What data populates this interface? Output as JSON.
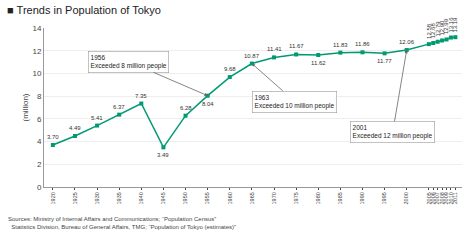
{
  "chart_data": {
    "type": "line",
    "title": "■ Trends in Population of Tokyo",
    "ylabel": "(million)",
    "x": [
      1920,
      1925,
      1930,
      1935,
      1940,
      1945,
      1950,
      1955,
      1960,
      1965,
      1970,
      1975,
      1980,
      1985,
      1990,
      1995,
      2000,
      2005,
      2006,
      2007,
      2008,
      2009,
      2010,
      2011
    ],
    "values": [
      3.7,
      4.49,
      5.41,
      6.37,
      7.35,
      3.49,
      6.28,
      8.04,
      9.68,
      10.87,
      11.41,
      11.67,
      11.62,
      11.83,
      11.86,
      11.77,
      12.06,
      12.58,
      12.68,
      12.79,
      12.9,
      12.99,
      13.16,
      13.19
    ],
    "value_labels": [
      "3.70",
      "4.49",
      "5.41",
      "6.37",
      "7.35",
      "3.49",
      "6.28",
      "8.04",
      "9.68",
      "10.87",
      "11.41",
      "11.67",
      "11.62",
      "11.83",
      "11.86",
      "11.77",
      "12.06",
      "12.58",
      "12.68",
      "12.79",
      "12.90",
      "12.99",
      "13.16",
      "13.19"
    ],
    "data_labels": true,
    "color": "#009973",
    "marker": "square",
    "line_style": "solid",
    "xlim": [
      1918,
      2012.5
    ],
    "xticks": [
      1920,
      1925,
      1930,
      1935,
      1940,
      1945,
      1950,
      1955,
      1960,
      1965,
      1970,
      1975,
      1980,
      1985,
      1990,
      1995,
      2000,
      2005,
      2006,
      2007,
      2008,
      2009,
      2010,
      2011
    ],
    "ylim": [
      0,
      14
    ],
    "yticks": [
      0,
      2,
      4,
      6,
      8,
      10,
      12,
      14
    ],
    "grid": true,
    "annotations": [
      {
        "text": "1956\nExceeded 8 million people",
        "x": 1955,
        "y": 8.04
      },
      {
        "text": "1963\nExceeded 10 million people",
        "x": 1965,
        "y": 10.87
      },
      {
        "text": "2001\nExceeded 12 million people",
        "x": 2000,
        "y": 12.06
      }
    ],
    "source": "Sources: Ministry of Internal Affairs and Communications; “Population Census”\n  Statistics Division, Bureau of General Affairs, TMG; “Population of Tokyo (estimates)”"
  }
}
